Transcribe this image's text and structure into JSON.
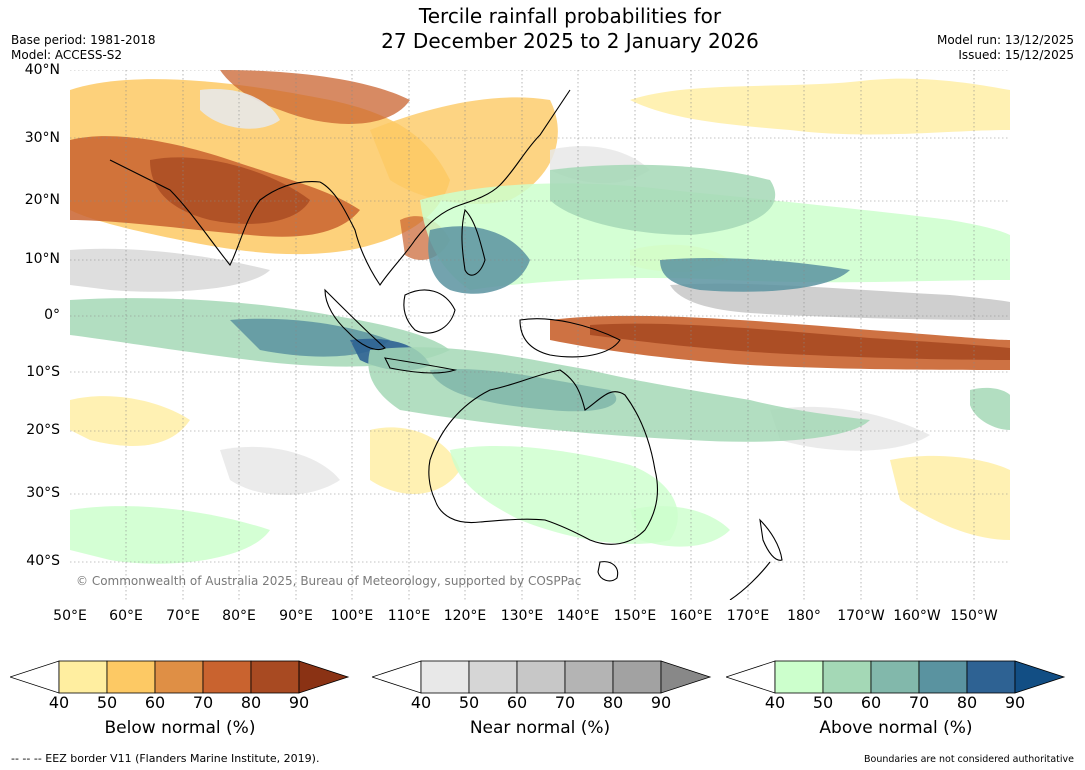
{
  "title": {
    "line1": "Tercile rainfall probabilities for",
    "line2": "27 December 2025 to 2 January 2026"
  },
  "meta": {
    "base_period": "Base period: 1981-2018",
    "model": "Model: ACCESS-S2",
    "model_run": "Model run: 13/12/2025",
    "issued": "Issued: 15/12/2025"
  },
  "copyright": "© Commonwealth of Australia 2025, Bureau of Meteorology, supported by COSPPac",
  "lat_labels": [
    "40°N",
    "30°N",
    "20°N",
    "10°N",
    "0°",
    "10°S",
    "20°S",
    "30°S",
    "40°S"
  ],
  "lon_labels": [
    "50°E",
    "60°E",
    "70°E",
    "80°E",
    "90°E",
    "100°E",
    "110°E",
    "120°E",
    "130°E",
    "140°E",
    "150°E",
    "160°E",
    "170°E",
    "180°",
    "170°W",
    "160°W",
    "150°W"
  ],
  "colorbars": {
    "below": {
      "label": "Below normal (%)",
      "ticks": [
        "40",
        "50",
        "60",
        "70",
        "80",
        "90"
      ],
      "colors": [
        "#ffeea0",
        "#fdc964",
        "#df8f45",
        "#c9632f",
        "#a84a22",
        "#8a3214"
      ]
    },
    "near": {
      "label": "Near normal (%)",
      "ticks": [
        "40",
        "50",
        "60",
        "70",
        "80",
        "90"
      ],
      "colors": [
        "#e8e8e8",
        "#d6d6d6",
        "#c7c7c7",
        "#b4b4b4",
        "#a2a2a2",
        "#888888"
      ]
    },
    "above": {
      "label": "Above normal (%)",
      "ticks": [
        "40",
        "50",
        "60",
        "70",
        "80",
        "90"
      ],
      "colors": [
        "#ccffcc",
        "#a4d8b6",
        "#82b8ab",
        "#5a93a0",
        "#2e6293",
        "#124e84"
      ]
    }
  },
  "footer": {
    "eez": "--  --  -- EEZ border V11 (Flanders Marine Institute, 2019).",
    "disclaimer": "Boundaries are not considered authoritative"
  }
}
